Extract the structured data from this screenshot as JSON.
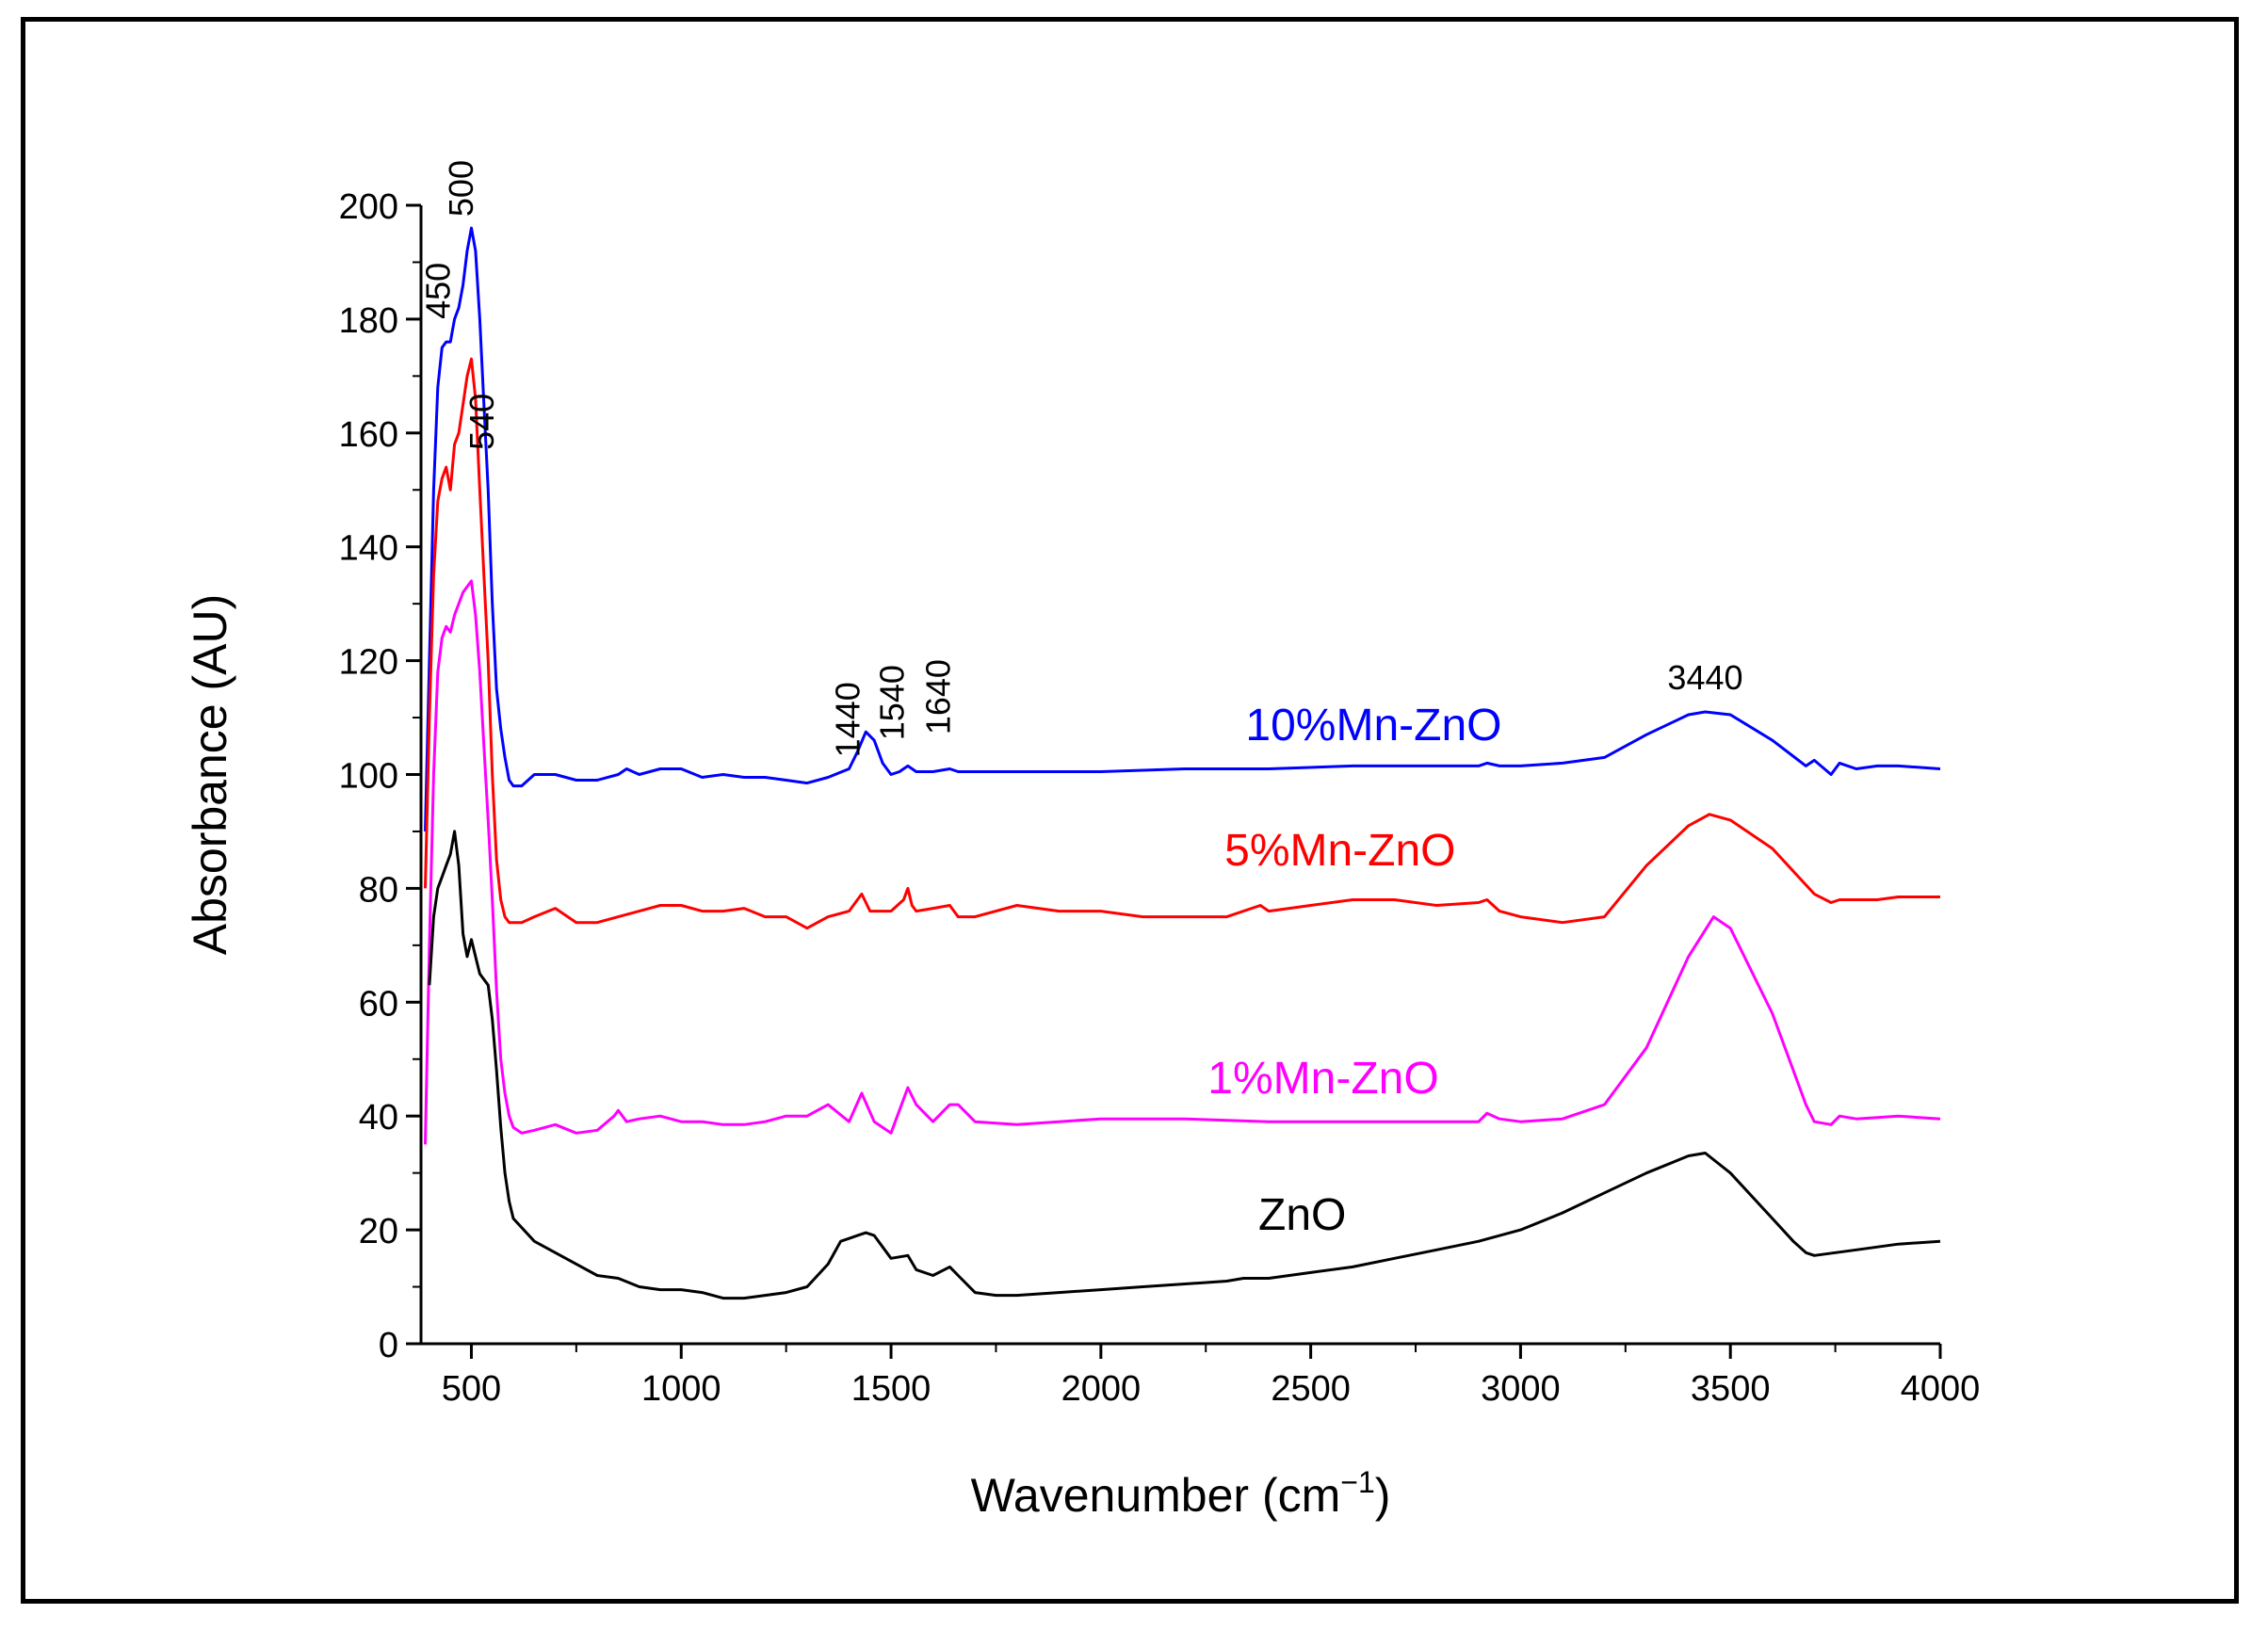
{
  "chart_data": {
    "type": "line",
    "title": "",
    "xlabel": "Wavenumber (cm",
    "xlabel_sup": "−1",
    "xlabel_close": ")",
    "ylabel": "Absorbance (AU)",
    "xlim": [
      380,
      4000
    ],
    "ylim": [
      0,
      200
    ],
    "x_ticks": [
      500,
      1000,
      1500,
      2000,
      2500,
      3000,
      3500,
      4000
    ],
    "y_ticks": [
      0,
      20,
      40,
      60,
      80,
      100,
      120,
      140,
      160,
      180,
      200
    ],
    "grid": false,
    "series": [
      {
        "name": "10%Mn-ZnO",
        "color": "#0000ff",
        "x": [
          390,
          400,
          410,
          420,
          430,
          440,
          450,
          460,
          470,
          480,
          490,
          500,
          510,
          520,
          530,
          540,
          550,
          560,
          570,
          580,
          590,
          600,
          620,
          650,
          700,
          750,
          800,
          850,
          870,
          900,
          950,
          1000,
          1050,
          1100,
          1150,
          1200,
          1250,
          1300,
          1350,
          1400,
          1420,
          1440,
          1460,
          1480,
          1500,
          1520,
          1540,
          1560,
          1600,
          1640,
          1660,
          1700,
          1800,
          1900,
          2000,
          2200,
          2400,
          2600,
          2800,
          2900,
          2920,
          2950,
          3000,
          3100,
          3200,
          3300,
          3400,
          3440,
          3500,
          3600,
          3680,
          3700,
          3740,
          3760,
          3800,
          3850,
          3900,
          4000
        ],
        "values": [
          90,
          120,
          150,
          168,
          175,
          176,
          176,
          180,
          182,
          186,
          192,
          196,
          192,
          180,
          165,
          150,
          130,
          115,
          108,
          103,
          99,
          98,
          98,
          100,
          100,
          99,
          99,
          100,
          101,
          100,
          101,
          101,
          99.5,
          100,
          99.5,
          99.5,
          99,
          98.5,
          99.5,
          101,
          104,
          107.5,
          106,
          102,
          100,
          100.5,
          101.5,
          100.5,
          100.5,
          101,
          100.5,
          100.5,
          100.5,
          100.5,
          100.5,
          101,
          101,
          101.5,
          101.5,
          101.5,
          102,
          101.5,
          101.5,
          102,
          103,
          107,
          110.5,
          111,
          110.5,
          106,
          101.5,
          102.5,
          100,
          102,
          101,
          101.5,
          101.5,
          101
        ]
      },
      {
        "name": "5%Mn-ZnO",
        "color": "#ff0000",
        "x": [
          390,
          400,
          410,
          420,
          430,
          440,
          450,
          460,
          470,
          480,
          490,
          500,
          510,
          520,
          530,
          540,
          550,
          560,
          570,
          580,
          590,
          600,
          620,
          650,
          700,
          750,
          800,
          850,
          900,
          950,
          1000,
          1050,
          1100,
          1150,
          1200,
          1250,
          1300,
          1350,
          1400,
          1430,
          1450,
          1500,
          1530,
          1540,
          1550,
          1560,
          1600,
          1640,
          1660,
          1700,
          1800,
          1900,
          2000,
          2100,
          2200,
          2300,
          2380,
          2400,
          2500,
          2600,
          2700,
          2800,
          2900,
          2920,
          2950,
          3000,
          3100,
          3200,
          3300,
          3400,
          3450,
          3500,
          3600,
          3700,
          3740,
          3760,
          3800,
          3850,
          3900,
          4000
        ],
        "values": [
          80,
          110,
          135,
          148,
          152,
          154,
          150,
          158,
          160,
          165,
          170,
          173,
          166,
          150,
          135,
          120,
          100,
          85,
          78,
          75,
          74,
          74,
          74,
          75,
          76.5,
          74,
          74,
          75,
          76,
          77,
          77,
          76,
          76,
          76.5,
          75,
          75,
          73,
          75,
          76,
          79,
          76,
          76,
          78,
          80,
          77,
          76,
          76.5,
          77,
          75,
          75,
          77,
          76,
          76,
          75,
          75,
          75,
          77,
          76,
          77,
          78,
          78,
          77,
          77.5,
          78,
          76,
          75,
          74,
          75,
          84,
          91,
          93,
          92,
          87,
          79,
          77.5,
          78,
          78,
          78,
          78.5,
          78.5
        ]
      },
      {
        "name": "1%Mn-ZnO",
        "color": "#ff00ff",
        "x": [
          390,
          400,
          410,
          420,
          430,
          440,
          450,
          460,
          470,
          480,
          490,
          500,
          510,
          520,
          530,
          540,
          550,
          560,
          570,
          580,
          590,
          600,
          620,
          650,
          700,
          750,
          800,
          840,
          850,
          870,
          900,
          950,
          1000,
          1050,
          1100,
          1150,
          1200,
          1250,
          1300,
          1350,
          1400,
          1430,
          1460,
          1500,
          1540,
          1560,
          1600,
          1640,
          1660,
          1700,
          1800,
          1900,
          2000,
          2200,
          2400,
          2600,
          2800,
          2900,
          2920,
          2950,
          3000,
          3100,
          3200,
          3300,
          3400,
          3460,
          3500,
          3600,
          3680,
          3700,
          3740,
          3760,
          3800,
          3900,
          4000
        ],
        "values": [
          35,
          70,
          100,
          118,
          124,
          126,
          125,
          128,
          130,
          132,
          133,
          134,
          128,
          118,
          105,
          92,
          78,
          62,
          50,
          44,
          40,
          38,
          37,
          37.5,
          38.5,
          37,
          37.5,
          40,
          41,
          39,
          39.5,
          40,
          39,
          39,
          38.5,
          38.5,
          39,
          40,
          40,
          42,
          39,
          44,
          39,
          37,
          45,
          42,
          39,
          42,
          42,
          39,
          38.5,
          39,
          39.5,
          39.5,
          39,
          39,
          39,
          39,
          40.5,
          39.5,
          39,
          39.5,
          42,
          52,
          68,
          75,
          73,
          58,
          42,
          39,
          38.5,
          40,
          39.5,
          40,
          39.5
        ]
      },
      {
        "name": "ZnO",
        "color": "#000000",
        "x": [
          400,
          410,
          420,
          430,
          440,
          450,
          460,
          470,
          480,
          490,
          500,
          510,
          520,
          530,
          540,
          550,
          560,
          570,
          580,
          590,
          600,
          650,
          700,
          750,
          800,
          850,
          900,
          950,
          1000,
          1050,
          1100,
          1150,
          1200,
          1250,
          1300,
          1350,
          1380,
          1400,
          1420,
          1440,
          1460,
          1480,
          1500,
          1540,
          1560,
          1600,
          1640,
          1660,
          1700,
          1750,
          1800,
          1900,
          2000,
          2100,
          2200,
          2300,
          2340,
          2400,
          2500,
          2600,
          2700,
          2800,
          2900,
          3000,
          3100,
          3200,
          3300,
          3400,
          3440,
          3500,
          3600,
          3650,
          3680,
          3700,
          3800,
          3900,
          4000
        ],
        "values": [
          63,
          75,
          80,
          82,
          84,
          86,
          90,
          84,
          72,
          68,
          71,
          68,
          65,
          64,
          63,
          57,
          48,
          38,
          30,
          25,
          22,
          18,
          16,
          14,
          12,
          11.5,
          10,
          9.5,
          9.5,
          9,
          8,
          8,
          8.5,
          9,
          10,
          14,
          18,
          18.5,
          19,
          19.5,
          19,
          17,
          15,
          15.5,
          13,
          12,
          13.5,
          12,
          9,
          8.5,
          8.5,
          9,
          9.5,
          10,
          10.5,
          11,
          11.5,
          11.5,
          12.5,
          13.5,
          15,
          16.5,
          18,
          20,
          23,
          26.5,
          30,
          33,
          33.5,
          30,
          22,
          18,
          16,
          15.5,
          16.5,
          17.5,
          18
        ]
      }
    ],
    "series_labels": [
      {
        "series": "10%Mn-ZnO",
        "text": "10%Mn-ZnO",
        "x": 2650,
        "y": 106
      },
      {
        "series": "5%Mn-ZnO",
        "text": "5%Mn-ZnO",
        "x": 2570,
        "y": 84
      },
      {
        "series": "1%Mn-ZnO",
        "text": "1%Mn-ZnO",
        "x": 2530,
        "y": 44
      },
      {
        "series": "ZnO",
        "text": "ZnO",
        "x": 2480,
        "y": 20
      }
    ],
    "annotations": [
      {
        "text": "450",
        "x": 448,
        "y": 180,
        "rotate": true
      },
      {
        "text": "500",
        "x": 503,
        "y": 198,
        "rotate": true
      },
      {
        "text": "540",
        "x": 553,
        "y": 157,
        "rotate": true
      },
      {
        "text": "1440",
        "x": 1425,
        "y": 103,
        "rotate": true
      },
      {
        "text": "1540",
        "x": 1530,
        "y": 106,
        "rotate": true
      },
      {
        "text": "1640",
        "x": 1640,
        "y": 107,
        "rotate": true
      },
      {
        "text": "3440",
        "x": 3440,
        "y": 115,
        "rotate": false
      }
    ]
  }
}
